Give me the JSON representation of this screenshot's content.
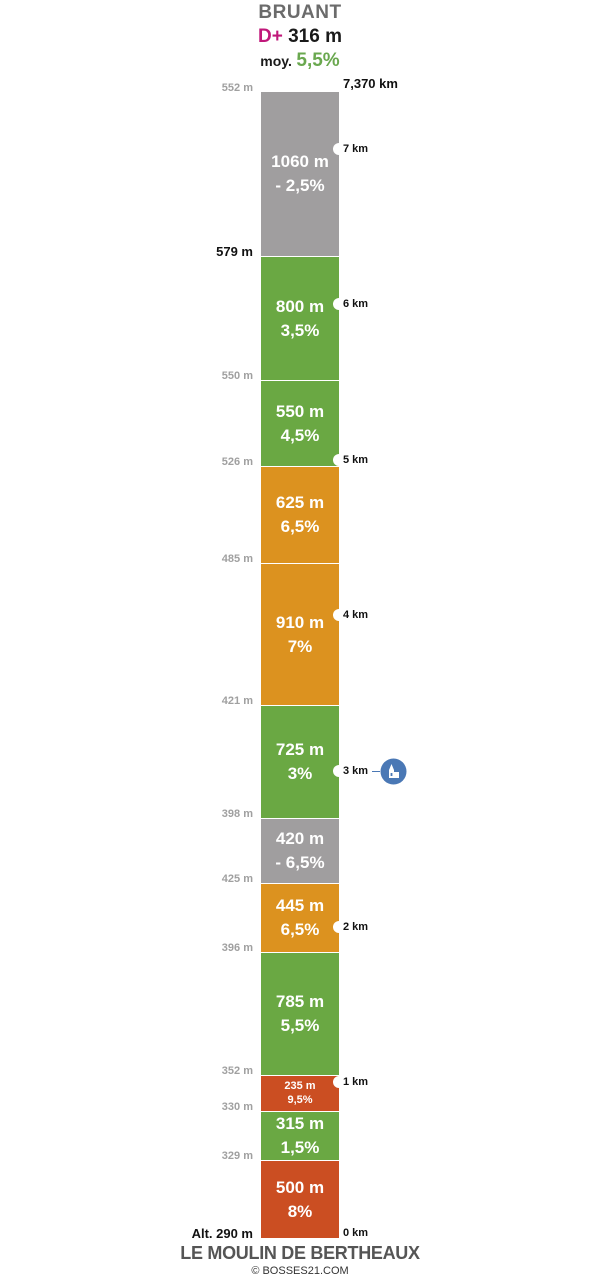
{
  "header": {
    "title": "BRUANT",
    "gain_prefix": "D+",
    "gain_value": "316 m",
    "avg_label": "moy.",
    "avg_value": "5,5%"
  },
  "footer": {
    "start_name": "LE MOULIN DE BERTHEAUX",
    "credit": "© BOSSES21.COM"
  },
  "colors": {
    "gray": "#a09e9f",
    "green": "#6aa843",
    "orange": "#dc921f",
    "red": "#cb4e22",
    "dplus": "#c0187a",
    "avg": "#6aa84f",
    "poi": "#4a78b5"
  },
  "chart_data": {
    "type": "bar",
    "title": "BRUANT",
    "total_distance_km": 7.37,
    "total_distance_label": "7,370 km",
    "segments": [
      {
        "length_m": 500,
        "length_label": "500 m",
        "grade_label": "8%",
        "grade": 8.0,
        "color": "red",
        "alt_start_label": "Alt. 290 m"
      },
      {
        "length_m": 315,
        "length_label": "315 m",
        "grade_label": "1,5%",
        "grade": 1.5,
        "color": "green",
        "alt_start_label": "329 m"
      },
      {
        "length_m": 235,
        "length_label": "235 m",
        "grade_label": "9,5%",
        "grade": 9.5,
        "color": "red",
        "alt_start_label": "330 m"
      },
      {
        "length_m": 785,
        "length_label": "785 m",
        "grade_label": "5,5%",
        "grade": 5.5,
        "color": "green",
        "alt_start_label": "352 m"
      },
      {
        "length_m": 445,
        "length_label": "445 m",
        "grade_label": "6,5%",
        "grade": 6.5,
        "color": "orange",
        "alt_start_label": "396 m"
      },
      {
        "length_m": 420,
        "length_label": "420 m",
        "grade_label": "- 6,5%",
        "grade": -6.5,
        "color": "gray",
        "alt_start_label": "425 m"
      },
      {
        "length_m": 725,
        "length_label": "725 m",
        "grade_label": "3%",
        "grade": 3.0,
        "color": "green",
        "alt_start_label": "398 m"
      },
      {
        "length_m": 910,
        "length_label": "910 m",
        "grade_label": "7%",
        "grade": 7.0,
        "color": "orange",
        "alt_start_label": "421 m"
      },
      {
        "length_m": 625,
        "length_label": "625 m",
        "grade_label": "6,5%",
        "grade": 6.5,
        "color": "orange",
        "alt_start_label": "485 m"
      },
      {
        "length_m": 550,
        "length_label": "550 m",
        "grade_label": "4,5%",
        "grade": 4.5,
        "color": "green",
        "alt_start_label": "526 m"
      },
      {
        "length_m": 800,
        "length_label": "800 m",
        "grade_label": "3,5%",
        "grade": 3.5,
        "color": "green",
        "alt_start_label": "550 m"
      },
      {
        "length_m": 1060,
        "length_label": "1060 m",
        "grade_label": "- 2,5%",
        "grade": -2.5,
        "color": "gray",
        "alt_start_label": "579 m"
      }
    ],
    "end_altitude_label": "552 m",
    "km_markers": [
      {
        "km": 0,
        "label": "0 km"
      },
      {
        "km": 1,
        "label": "1 km"
      },
      {
        "km": 2,
        "label": "2 km"
      },
      {
        "km": 3,
        "label": "3 km"
      },
      {
        "km": 4,
        "label": "4 km"
      },
      {
        "km": 5,
        "label": "5 km"
      },
      {
        "km": 6,
        "label": "6 km"
      },
      {
        "km": 7,
        "label": "7 km"
      }
    ],
    "poi": {
      "km": 3,
      "icon": "church-icon"
    },
    "summit_altitude_label": "579 m"
  }
}
